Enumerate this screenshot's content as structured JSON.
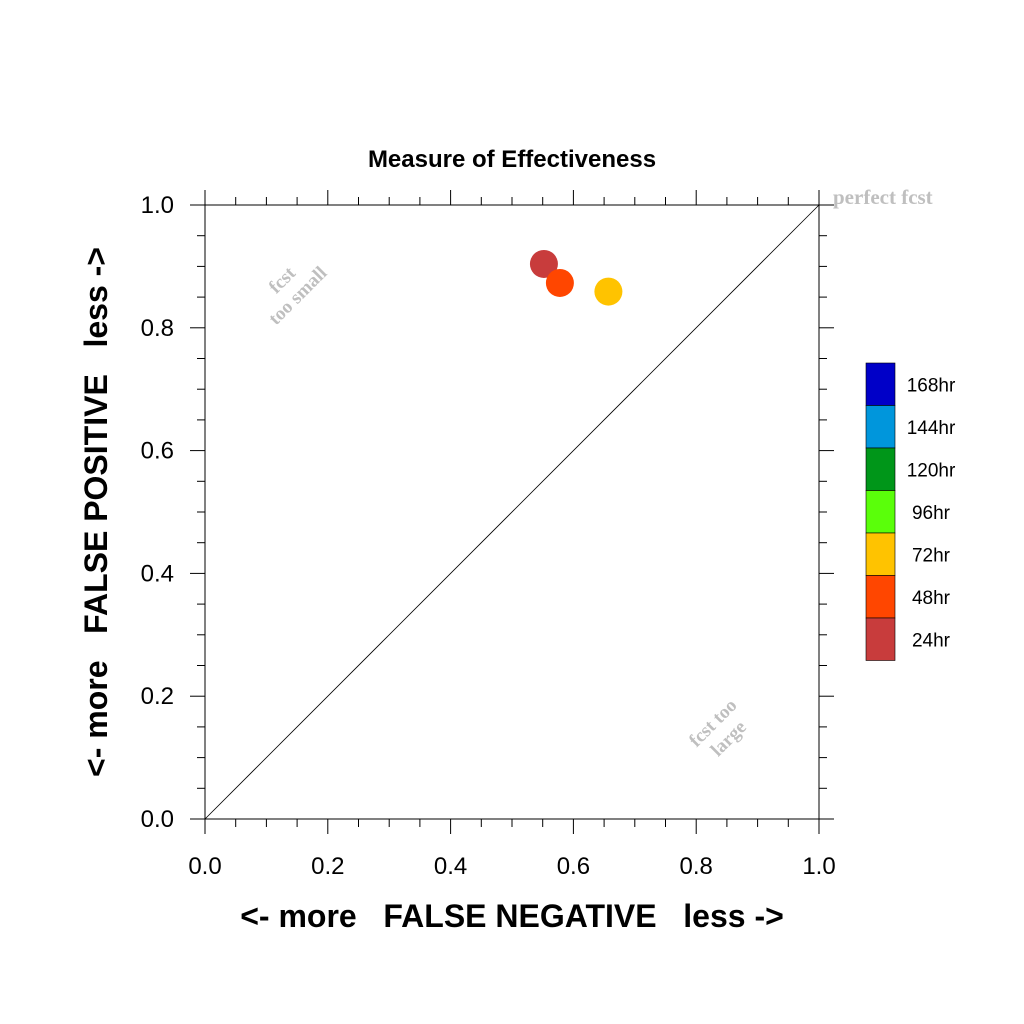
{
  "chart_data": {
    "type": "scatter",
    "title": "Measure of Effectiveness",
    "xlabel": "<- more   FALSE NEGATIVE   less ->",
    "ylabel": "<- more   FALSE POSITIVE   less ->",
    "xlim": [
      0.0,
      1.0
    ],
    "ylim": [
      0.0,
      1.0
    ],
    "x_ticks": [
      "0.0",
      "0.2",
      "0.4",
      "0.6",
      "0.8",
      "1.0"
    ],
    "y_ticks": [
      "0.0",
      "0.2",
      "0.4",
      "0.6",
      "0.8",
      "1.0"
    ],
    "grid": false,
    "diagonal_line": true,
    "annotations": {
      "perfect": "perfect fcst",
      "too_small_line1": "fcst",
      "too_small_line2": "too small",
      "too_large_line1": "fcst too",
      "too_large_line2": "large"
    },
    "legend_position": "right",
    "legend": [
      {
        "label": "168hr",
        "color": "#0000c8"
      },
      {
        "label": "144hr",
        "color": "#0096dc"
      },
      {
        "label": "120hr",
        "color": "#009619"
      },
      {
        "label": "96hr",
        "color": "#5aff0a"
      },
      {
        "label": "72hr",
        "color": "#ffc300"
      },
      {
        "label": "48hr",
        "color": "#ff4600"
      },
      {
        "label": "24hr",
        "color": "#c83c3c"
      }
    ],
    "points": [
      {
        "series": "24hr",
        "x": 0.552,
        "y": 0.904,
        "color": "#c83c3c"
      },
      {
        "series": "48hr",
        "x": 0.578,
        "y": 0.873,
        "color": "#ff4600"
      },
      {
        "series": "72hr",
        "x": 0.657,
        "y": 0.859,
        "color": "#ffc300"
      }
    ]
  }
}
